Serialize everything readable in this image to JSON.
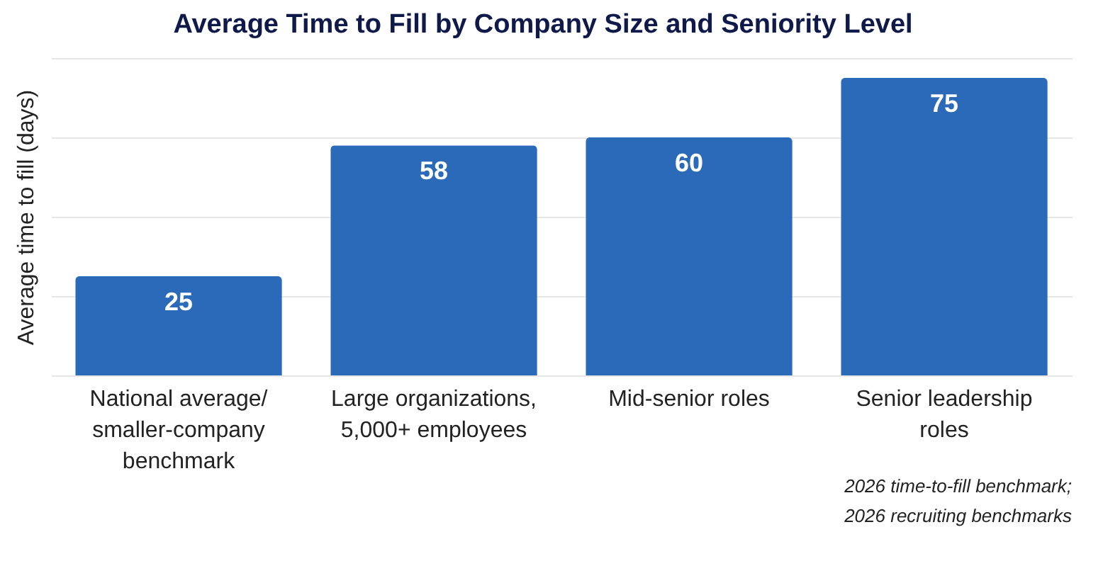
{
  "chart_data": {
    "type": "bar",
    "title": "Average Time to Fill by Company Size and Seniority Level",
    "categories": [
      "National average/\nsmaller-company\nbenchmark",
      "Large organizations,\n5,000+ employees",
      "Mid-senior roles",
      "Senior leadership\nroles"
    ],
    "values": [
      25,
      58,
      60,
      75
    ],
    "color": "#2a6ab8",
    "ylabel": "Average time to fill (days)",
    "tick_labels": "x",
    "grid": "y",
    "data_labels": true,
    "annotations": [
      "2026 time-to-fill benchmark;",
      "2026 recruiting benchmarks"
    ]
  }
}
